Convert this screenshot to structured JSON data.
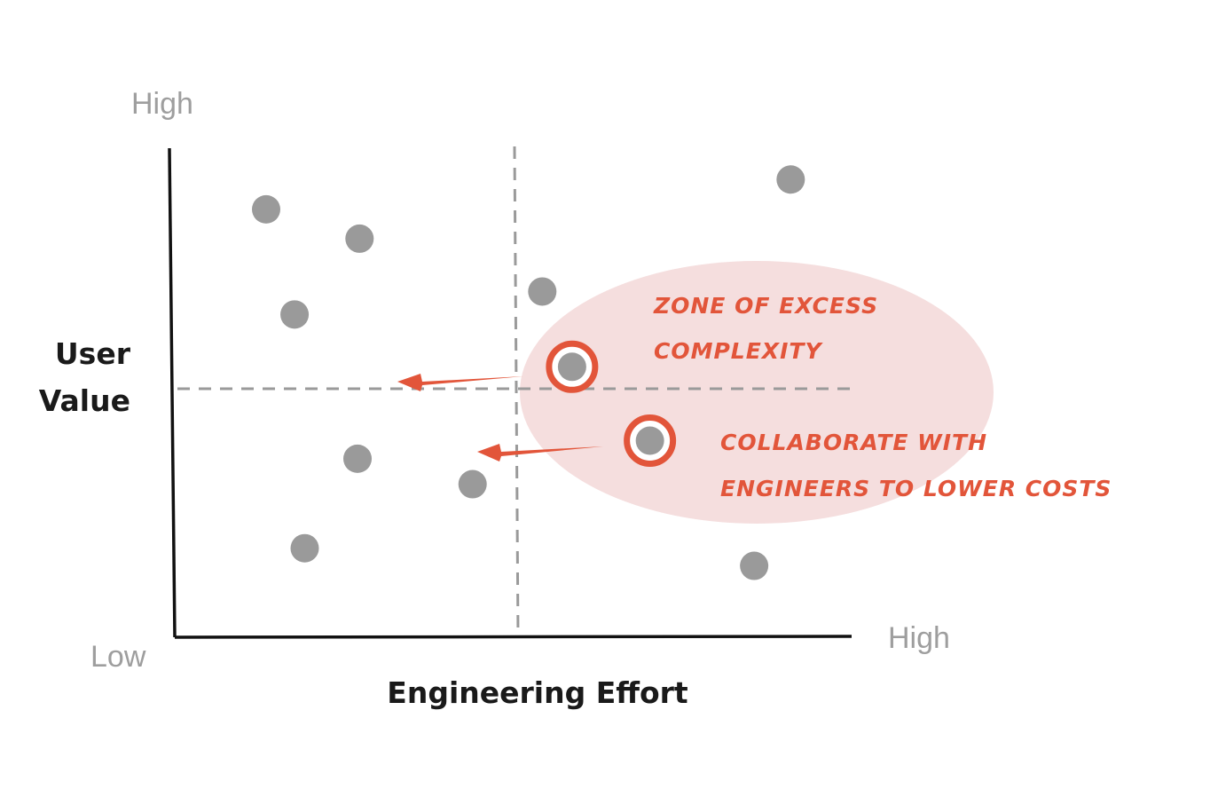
{
  "axes": {
    "y_title_line1": "User",
    "y_title_line2": "Value",
    "x_title": "Engineering Effort",
    "y_high": "High",
    "x_high": "High",
    "origin_low": "Low"
  },
  "zone": {
    "label_line1": "ZONE OF EXCESS",
    "label_line2": "COMPLEXITY",
    "fill": "#f5dede"
  },
  "note": {
    "line1": "COLLABORATE WITH",
    "line2": "ENGINEERS TO LOWER COSTS"
  },
  "colors": {
    "accent": "#e2553a",
    "dot": "#9a9a9a",
    "axis": "#111111",
    "divider": "#9a9a9a"
  },
  "chart_data": {
    "type": "scatter",
    "xlabel": "Engineering Effort",
    "ylabel": "User Value",
    "xlim": [
      0,
      100
    ],
    "ylim": [
      0,
      100
    ],
    "divider_x": 50,
    "divider_y": 51,
    "points": [
      {
        "x": 13.5,
        "y": 87.5,
        "highlighted": false
      },
      {
        "x": 27.3,
        "y": 81.5,
        "highlighted": false
      },
      {
        "x": 17.7,
        "y": 66.0,
        "highlighted": false
      },
      {
        "x": 27.0,
        "y": 36.5,
        "highlighted": false
      },
      {
        "x": 44.0,
        "y": 31.3,
        "highlighted": false
      },
      {
        "x": 19.2,
        "y": 18.2,
        "highlighted": false
      },
      {
        "x": 54.3,
        "y": 70.7,
        "highlighted": false
      },
      {
        "x": 91.0,
        "y": 93.6,
        "highlighted": false
      },
      {
        "x": 85.6,
        "y": 14.6,
        "highlighted": false
      },
      {
        "x": 58.7,
        "y": 55.3,
        "highlighted": true
      },
      {
        "x": 70.2,
        "y": 40.2,
        "highlighted": true
      }
    ]
  }
}
